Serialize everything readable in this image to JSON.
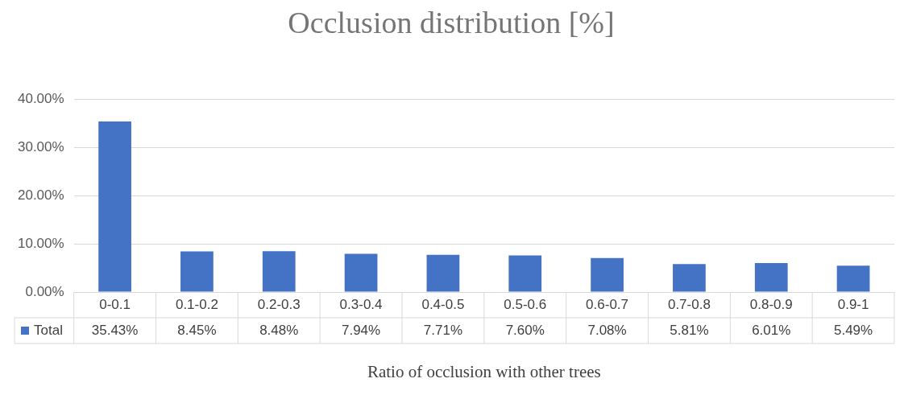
{
  "chart_data": {
    "type": "bar",
    "title": "Occlusion distribution [%]",
    "xlabel": "Ratio of occlusion with other trees",
    "categories": [
      "0-0.1",
      "0.1-0.2",
      "0.2-0.3",
      "0.3-0.4",
      "0.4-0.5",
      "0.5-0.6",
      "0.6-0.7",
      "0.7-0.8",
      "0.8-0.9",
      "0.9-1"
    ],
    "series": [
      {
        "name": "Total",
        "color": "#4472c4",
        "values": [
          35.43,
          8.45,
          8.48,
          7.94,
          7.71,
          7.6,
          7.08,
          5.81,
          6.01,
          5.49
        ],
        "value_labels": [
          "35.43%",
          "8.45%",
          "8.48%",
          "7.94%",
          "7.71%",
          "7.60%",
          "7.08%",
          "5.81%",
          "6.01%",
          "5.49%"
        ]
      }
    ],
    "ylim": [
      0,
      40
    ],
    "yticks": [
      {
        "value": 0,
        "label": "0.00%"
      },
      {
        "value": 10,
        "label": "10.00%"
      },
      {
        "value": 20,
        "label": "20.00%"
      },
      {
        "value": 30,
        "label": "30.00%"
      },
      {
        "value": 40,
        "label": "40.00%"
      }
    ],
    "grid": "y",
    "legend": "bottom"
  }
}
